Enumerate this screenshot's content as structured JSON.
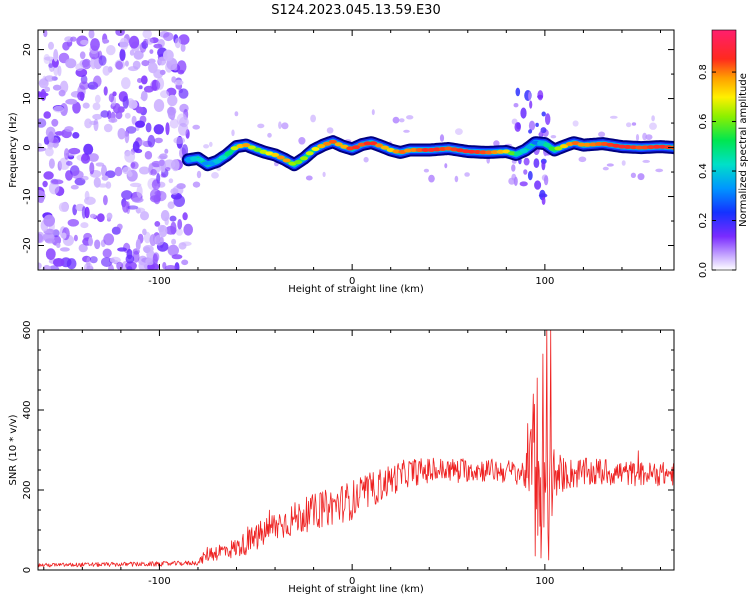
{
  "title": "S124.2023.045.13.59.E30",
  "chart_data": [
    {
      "type": "heatmap",
      "xlabel": "Height of straight line (km)",
      "ylabel": "Frequency (Hz)",
      "xlim": [
        -163,
        167
      ],
      "ylim": [
        -25,
        24
      ],
      "xticks": [
        -100,
        0,
        100
      ],
      "yticks": [
        -20,
        -10,
        0,
        10,
        20
      ],
      "colorbar": {
        "label": "Normalized spectral amplitude",
        "range": [
          0,
          0.97
        ],
        "ticks": [
          0.0,
          0.2,
          0.4,
          0.6,
          0.8
        ],
        "tick_labels": [
          "0.0",
          "0.2",
          "0.4",
          "0.6",
          "0.8"
        ]
      },
      "noise_region_x": [
        -163,
        -85
      ],
      "ridge": {
        "x": [
          -85,
          -80,
          -75,
          -70,
          -65,
          -60,
          -55,
          -50,
          -45,
          -40,
          -35,
          -30,
          -25,
          -20,
          -15,
          -10,
          -5,
          0,
          5,
          10,
          15,
          20,
          25,
          30,
          40,
          50,
          60,
          70,
          80,
          85,
          90,
          95,
          100,
          105,
          110,
          115,
          120,
          130,
          140,
          150,
          160,
          167
        ],
        "y": [
          -2.5,
          -2.2,
          -3.5,
          -2.8,
          -1.5,
          0.2,
          0.5,
          -0.3,
          -1.0,
          -1.5,
          -2.4,
          -3.5,
          -2.2,
          -0.5,
          0.5,
          1.2,
          0.3,
          -0.3,
          0.6,
          1.0,
          0.3,
          -0.5,
          -1.0,
          -0.5,
          -0.5,
          -0.2,
          -0.8,
          -1.0,
          -0.8,
          -1.4,
          -0.5,
          1.0,
          0.8,
          -0.5,
          0.3,
          1.0,
          0.5,
          0.8,
          0.2,
          0.0,
          0.2,
          0.0
        ],
        "amp": [
          0.35,
          0.45,
          0.3,
          0.4,
          0.45,
          0.75,
          0.8,
          0.6,
          0.7,
          0.75,
          0.85,
          0.6,
          0.65,
          0.7,
          0.8,
          0.85,
          0.75,
          0.9,
          0.85,
          0.9,
          0.8,
          0.75,
          0.85,
          0.8,
          0.9,
          0.85,
          0.9,
          0.85,
          0.75,
          0.5,
          0.4,
          0.3,
          0.45,
          0.6,
          0.75,
          0.85,
          0.8,
          0.85,
          0.9,
          0.85,
          0.9,
          0.85
        ]
      }
    },
    {
      "type": "line",
      "xlabel": "Height of straight line (km)",
      "ylabel": "SNR (10 * v/v)",
      "xlim": [
        -163,
        167
      ],
      "ylim": [
        0,
        600
      ],
      "xticks": [
        -100,
        0,
        100
      ],
      "yticks": [
        0,
        200,
        400,
        600
      ],
      "color": "#ee2222",
      "envelope": {
        "x": [
          -163,
          -100,
          -80,
          -75,
          -60,
          -50,
          -40,
          -20,
          0,
          10,
          20,
          30,
          50,
          70,
          85,
          90,
          95,
          100,
          105,
          110,
          130,
          150,
          167
        ],
        "mean": [
          12,
          15,
          18,
          40,
          55,
          80,
          110,
          145,
          175,
          200,
          225,
          245,
          250,
          250,
          245,
          240,
          250,
          240,
          230,
          240,
          245,
          240,
          240
        ],
        "noise": [
          5,
          6,
          6,
          20,
          25,
          35,
          40,
          45,
          50,
          45,
          40,
          35,
          30,
          30,
          30,
          40,
          180,
          200,
          80,
          40,
          35,
          30,
          30
        ]
      },
      "peaks": [
        {
          "x": 94,
          "y": 440
        },
        {
          "x": 96,
          "y": 480
        },
        {
          "x": 99,
          "y": 540
        },
        {
          "x": 101,
          "y": 610
        },
        {
          "x": 103,
          "y": 600
        },
        {
          "x": 95,
          "y": 35
        },
        {
          "x": 98,
          "y": 30
        },
        {
          "x": 102,
          "y": 25
        }
      ]
    }
  ]
}
